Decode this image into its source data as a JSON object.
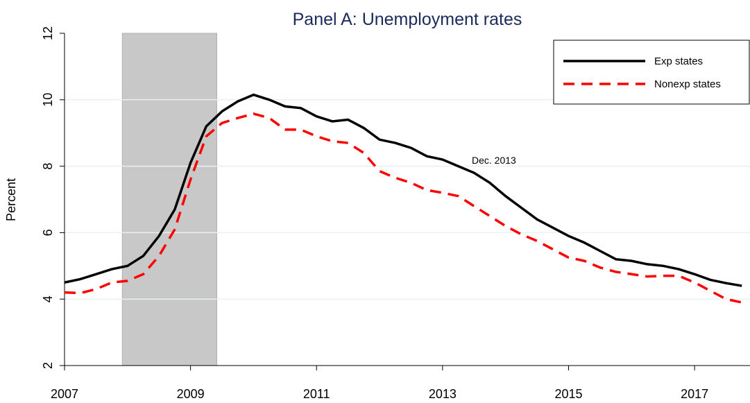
{
  "chart_data": {
    "type": "line",
    "title": "Panel A: Unemployment rates",
    "y_label": "Percent",
    "x": [
      2007.0,
      2007.25,
      2007.5,
      2007.75,
      2008.0,
      2008.25,
      2008.5,
      2008.75,
      2009.0,
      2009.25,
      2009.5,
      2009.75,
      2010.0,
      2010.25,
      2010.5,
      2010.75,
      2011.0,
      2011.25,
      2011.5,
      2011.75,
      2012.0,
      2012.25,
      2012.5,
      2012.75,
      2013.0,
      2013.25,
      2013.5,
      2013.75,
      2014.0,
      2014.25,
      2014.5,
      2014.75,
      2015.0,
      2015.25,
      2015.5,
      2015.75,
      2016.0,
      2016.25,
      2016.5,
      2016.75,
      2017.0,
      2017.25,
      2017.5,
      2017.75
    ],
    "series": [
      {
        "name": "Exp states",
        "color": "#000000",
        "dash": false,
        "values": [
          4.5,
          4.6,
          4.75,
          4.9,
          5.0,
          5.3,
          5.9,
          6.7,
          8.1,
          9.2,
          9.65,
          9.95,
          10.15,
          10.0,
          9.8,
          9.75,
          9.5,
          9.35,
          9.4,
          9.15,
          8.8,
          8.7,
          8.55,
          8.3,
          8.2,
          8.0,
          7.8,
          7.5,
          7.1,
          6.75,
          6.4,
          6.15,
          5.9,
          5.7,
          5.45,
          5.2,
          5.15,
          5.05,
          5.0,
          4.9,
          4.75,
          4.58,
          4.48,
          4.4
        ]
      },
      {
        "name": "Nonexp states",
        "color": "#ff0000",
        "dash": true,
        "values": [
          4.2,
          4.18,
          4.3,
          4.5,
          4.55,
          4.75,
          5.3,
          6.1,
          7.6,
          8.9,
          9.3,
          9.45,
          9.58,
          9.45,
          9.1,
          9.1,
          8.9,
          8.75,
          8.7,
          8.4,
          7.85,
          7.65,
          7.5,
          7.28,
          7.2,
          7.1,
          6.8,
          6.5,
          6.2,
          5.95,
          5.75,
          5.5,
          5.25,
          5.15,
          4.95,
          4.82,
          4.75,
          4.68,
          4.7,
          4.7,
          4.5,
          4.25,
          4.0,
          3.9
        ]
      }
    ],
    "shaded_region": [
      2007.917,
      2009.417
    ],
    "annotations": [
      {
        "text": "Dec. 2013"
      }
    ],
    "xlim": [
      2007,
      2017.88
    ],
    "xticks": [
      2007,
      2009,
      2011,
      2013,
      2015,
      2017
    ],
    "ylim": [
      2,
      12
    ],
    "yticks": [
      2,
      4,
      6,
      8,
      10,
      12
    ],
    "grid": true,
    "legend": "top right"
  }
}
